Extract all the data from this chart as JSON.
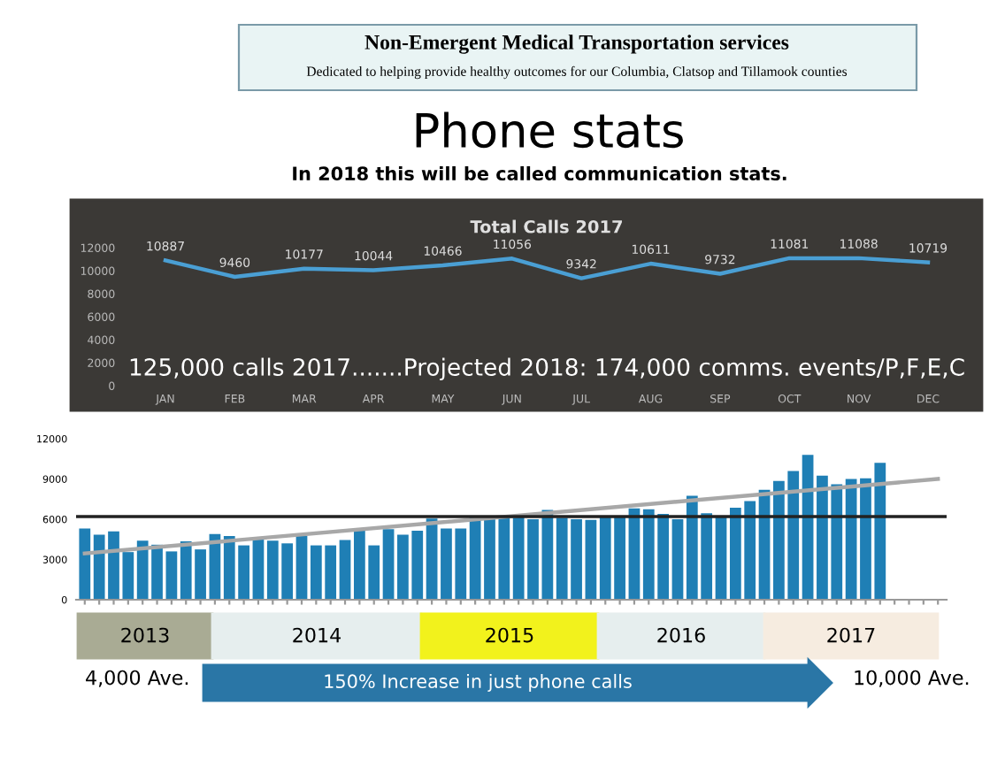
{
  "chart_data": [
    {
      "type": "line",
      "title": "Total Calls 2017",
      "categories": [
        "JAN",
        "FEB",
        "MAR",
        "APR",
        "MAY",
        "JUN",
        "JUL",
        "AUG",
        "SEP",
        "OCT",
        "NOV",
        "DEC"
      ],
      "series": [
        {
          "color": "#4a9fd4",
          "values": [
            10887,
            9460,
            10177,
            10044,
            10466,
            11056,
            9342,
            10611,
            9732,
            11081,
            11088,
            10719
          ]
        }
      ],
      "data_labels": true,
      "ylim": [
        0,
        12000
      ],
      "yticks": [
        0,
        2000,
        4000,
        6000,
        8000,
        10000,
        12000
      ],
      "marker": "none",
      "annotations": [
        "Non-Emergent Medical Transportation services",
        "Dedicated to helping provide healthy outcomes for our Columbia, Clatsop and Tillamook counties",
        "Phone stats",
        "In 2018 this will be called communication stats.",
        "125,000 calls 2017.......Projected 2018: 174,000 comms. events/P,F,E,C"
      ]
    },
    {
      "type": "bar",
      "ylim": [
        0,
        12000
      ],
      "yticks": [
        0,
        3000,
        6000,
        9000,
        12000
      ],
      "categories": [
        null,
        null,
        null,
        null,
        null,
        null,
        null,
        null,
        null,
        null,
        null,
        null,
        null,
        null,
        null,
        null,
        null,
        null,
        null,
        null,
        null,
        null,
        null,
        null,
        null,
        null,
        null,
        null,
        null,
        null,
        null,
        null,
        null,
        null,
        null,
        null,
        null,
        null,
        null,
        null,
        null,
        null,
        null,
        null,
        null,
        null,
        null,
        null,
        null,
        null,
        null,
        null,
        null,
        null,
        null,
        null,
        null,
        null,
        null,
        null
      ],
      "series": [
        {
          "color": "#1f7fb5",
          "values": [
            5300,
            4850,
            5100,
            3550,
            4400,
            4100,
            3600,
            4350,
            3750,
            4900,
            4750,
            4050,
            4550,
            4400,
            4200,
            4750,
            4050,
            4050,
            4450,
            5200,
            4050,
            5250,
            4850,
            5150,
            6050,
            5300,
            5300,
            6150,
            6000,
            6150,
            6150,
            6000,
            6700,
            6100,
            6000,
            5950,
            6250,
            6200,
            6800,
            6750,
            6400,
            6000,
            7750,
            6450,
            6200,
            6850,
            7350,
            8200,
            8850,
            9600,
            10800,
            9250,
            8600,
            9000,
            9050,
            10200,
            null,
            null,
            null,
            null
          ]
        },
        {
          "type": "line",
          "color": "#a8a8a8",
          "values": [
            3450,
            null,
            null,
            null,
            null,
            null,
            null,
            null,
            null,
            null,
            null,
            null,
            null,
            null,
            null,
            null,
            null,
            null,
            null,
            null,
            null,
            null,
            null,
            null,
            null,
            null,
            null,
            null,
            null,
            null,
            null,
            null,
            null,
            null,
            null,
            null,
            null,
            null,
            null,
            null,
            null,
            null,
            null,
            null,
            null,
            null,
            null,
            null,
            null,
            null,
            null,
            null,
            null,
            null,
            null,
            null,
            null,
            null,
            null,
            9000
          ]
        }
      ],
      "ref_lines": [
        {
          "axis": "y",
          "value": 6200,
          "color": "#222222"
        }
      ],
      "annotations": [
        "2013",
        "2014",
        "2015",
        "2016",
        "2017",
        "4,000 Ave.",
        "150% Increase in just phone calls",
        "10,000 Ave."
      ]
    }
  ]
}
